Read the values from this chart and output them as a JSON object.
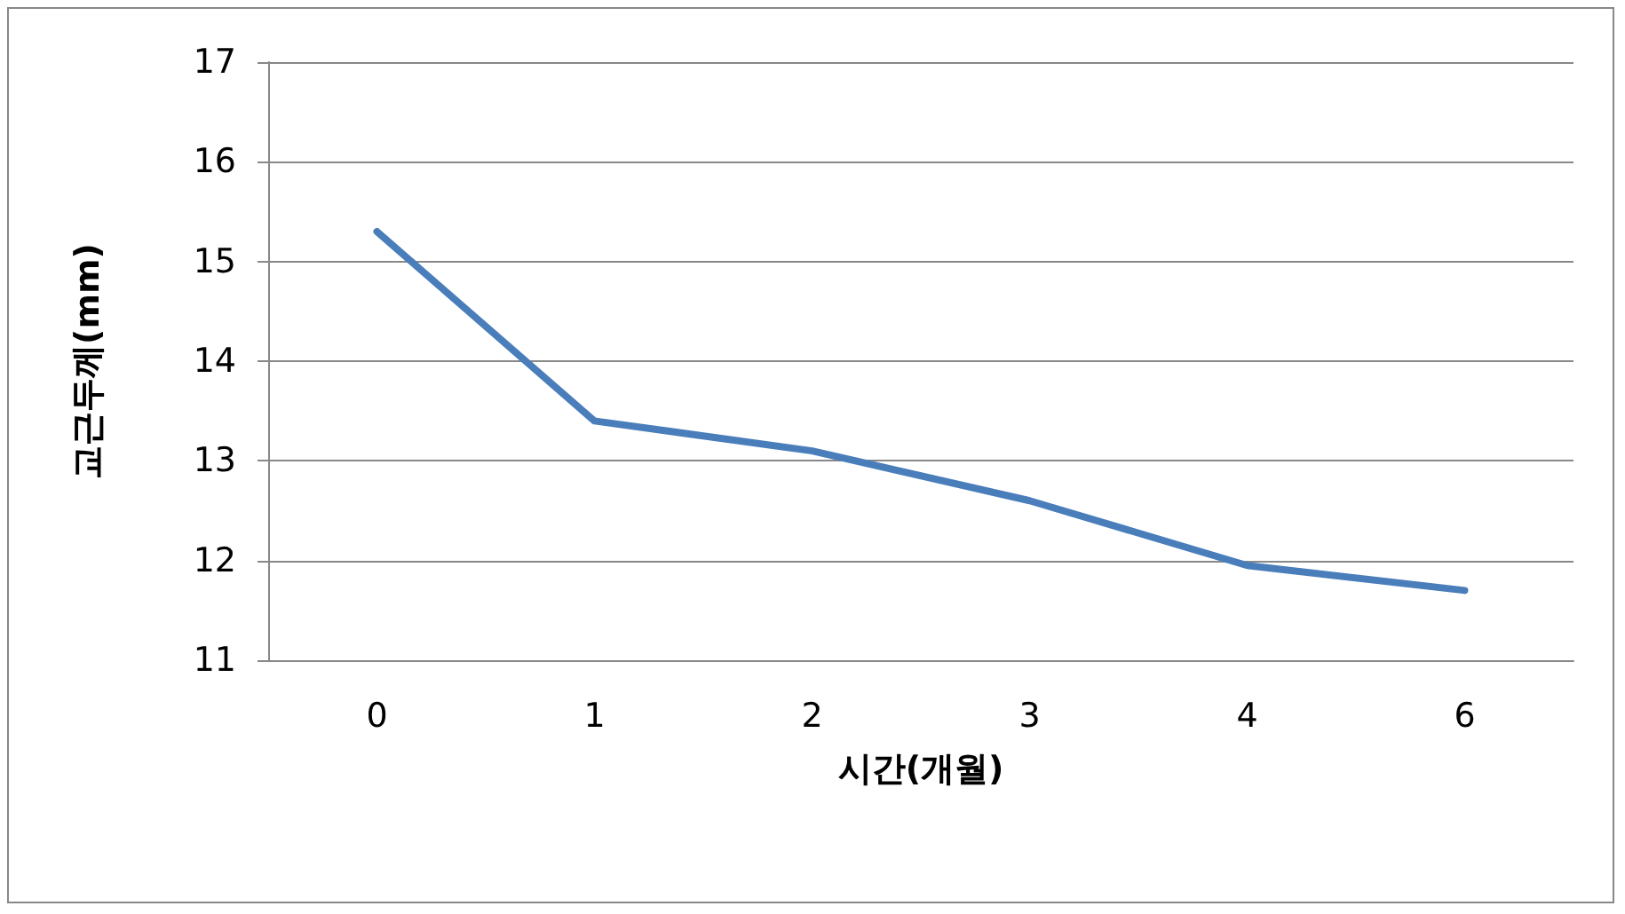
{
  "chart_data": {
    "type": "line",
    "xlabel": "시간(개월)",
    "ylabel": "교근두께(mm)",
    "categories": [
      "0",
      "1",
      "2",
      "3",
      "4",
      "6"
    ],
    "series": [
      {
        "color": "#4a7ebb",
        "values": [
          15.3,
          13.4,
          13.1,
          12.6,
          11.95,
          11.7
        ]
      }
    ],
    "ylim": [
      11,
      17
    ],
    "yticks": [
      11,
      12,
      13,
      14,
      15,
      16,
      17
    ],
    "grid": "y",
    "marker": "none",
    "line_style": "solid"
  }
}
